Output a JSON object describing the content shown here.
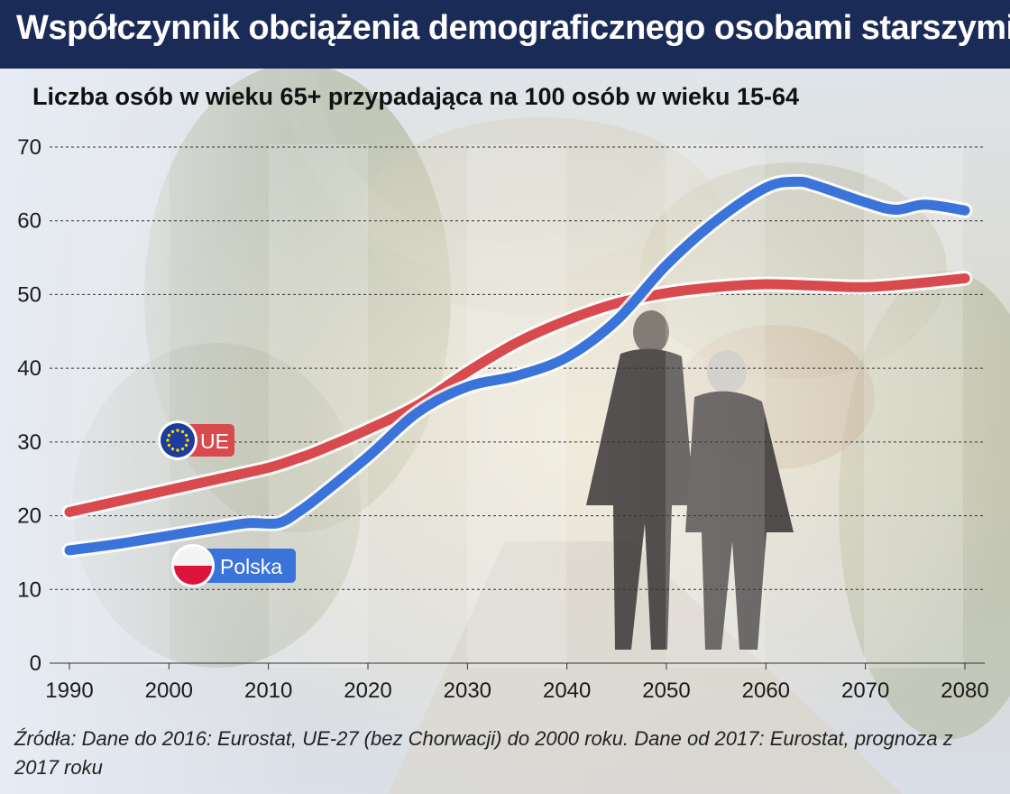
{
  "title": "Współczynnik obciążenia demograficznego osobami starszymi",
  "source": "Źródła: Dane do 2016: Eurostat, UE-27 (bez Chorwacji) do 2000 roku. Dane od 2017: Eurostat, prognoza z 2017 roku",
  "colors": {
    "title_bg": "#1b2b57",
    "ue_line": "#d94a4e",
    "polska_line": "#3a74db",
    "ue_flag": "#1d3c9c",
    "ue_stars": "#ffd200",
    "pl_flag_red": "#dc143c"
  },
  "chart_data": {
    "type": "line",
    "title": "",
    "subtitle": "Liczba osób w wieku 65+ przypadająca na 100 osób w wieku 15-64",
    "xlabel": "",
    "ylabel": "",
    "xlim": [
      1990,
      2080
    ],
    "ylim": [
      0,
      70
    ],
    "x_ticks": [
      "1990",
      "2000",
      "2010",
      "2020",
      "2030",
      "2040",
      "2050",
      "2060",
      "2070",
      "2080"
    ],
    "y_ticks": [
      "0",
      "10",
      "20",
      "30",
      "40",
      "50",
      "60",
      "70"
    ],
    "grid": "horizontal dashed",
    "legend": "inline labels on lines",
    "series": [
      {
        "name": "UE",
        "color": "#d94a4e",
        "points": [
          [
            1990,
            20.5
          ],
          [
            1995,
            22
          ],
          [
            2000,
            23.5
          ],
          [
            2005,
            25
          ],
          [
            2010,
            26.5
          ],
          [
            2013,
            27.8
          ],
          [
            2015,
            28.8
          ],
          [
            2020,
            31.7
          ],
          [
            2025,
            35
          ],
          [
            2030,
            39.5
          ],
          [
            2035,
            43.5
          ],
          [
            2040,
            46.5
          ],
          [
            2045,
            48.8
          ],
          [
            2050,
            50.2
          ],
          [
            2055,
            51
          ],
          [
            2060,
            51.4
          ],
          [
            2065,
            51.2
          ],
          [
            2070,
            51
          ],
          [
            2075,
            51.5
          ],
          [
            2080,
            52.2
          ]
        ]
      },
      {
        "name": "Polska",
        "color": "#3a74db",
        "points": [
          [
            1990,
            15.3
          ],
          [
            1995,
            16.2
          ],
          [
            2000,
            17.3
          ],
          [
            2005,
            18.4
          ],
          [
            2008,
            19
          ],
          [
            2011,
            19
          ],
          [
            2013,
            20.5
          ],
          [
            2015,
            22.5
          ],
          [
            2020,
            28
          ],
          [
            2025,
            34
          ],
          [
            2030,
            37.5
          ],
          [
            2035,
            39
          ],
          [
            2040,
            41.5
          ],
          [
            2045,
            46.5
          ],
          [
            2050,
            54
          ],
          [
            2055,
            60
          ],
          [
            2060,
            64.5
          ],
          [
            2063,
            65.3
          ],
          [
            2065,
            64.8
          ],
          [
            2070,
            62.5
          ],
          [
            2073,
            61.5
          ],
          [
            2076,
            62.2
          ],
          [
            2080,
            61.4
          ]
        ]
      }
    ]
  }
}
